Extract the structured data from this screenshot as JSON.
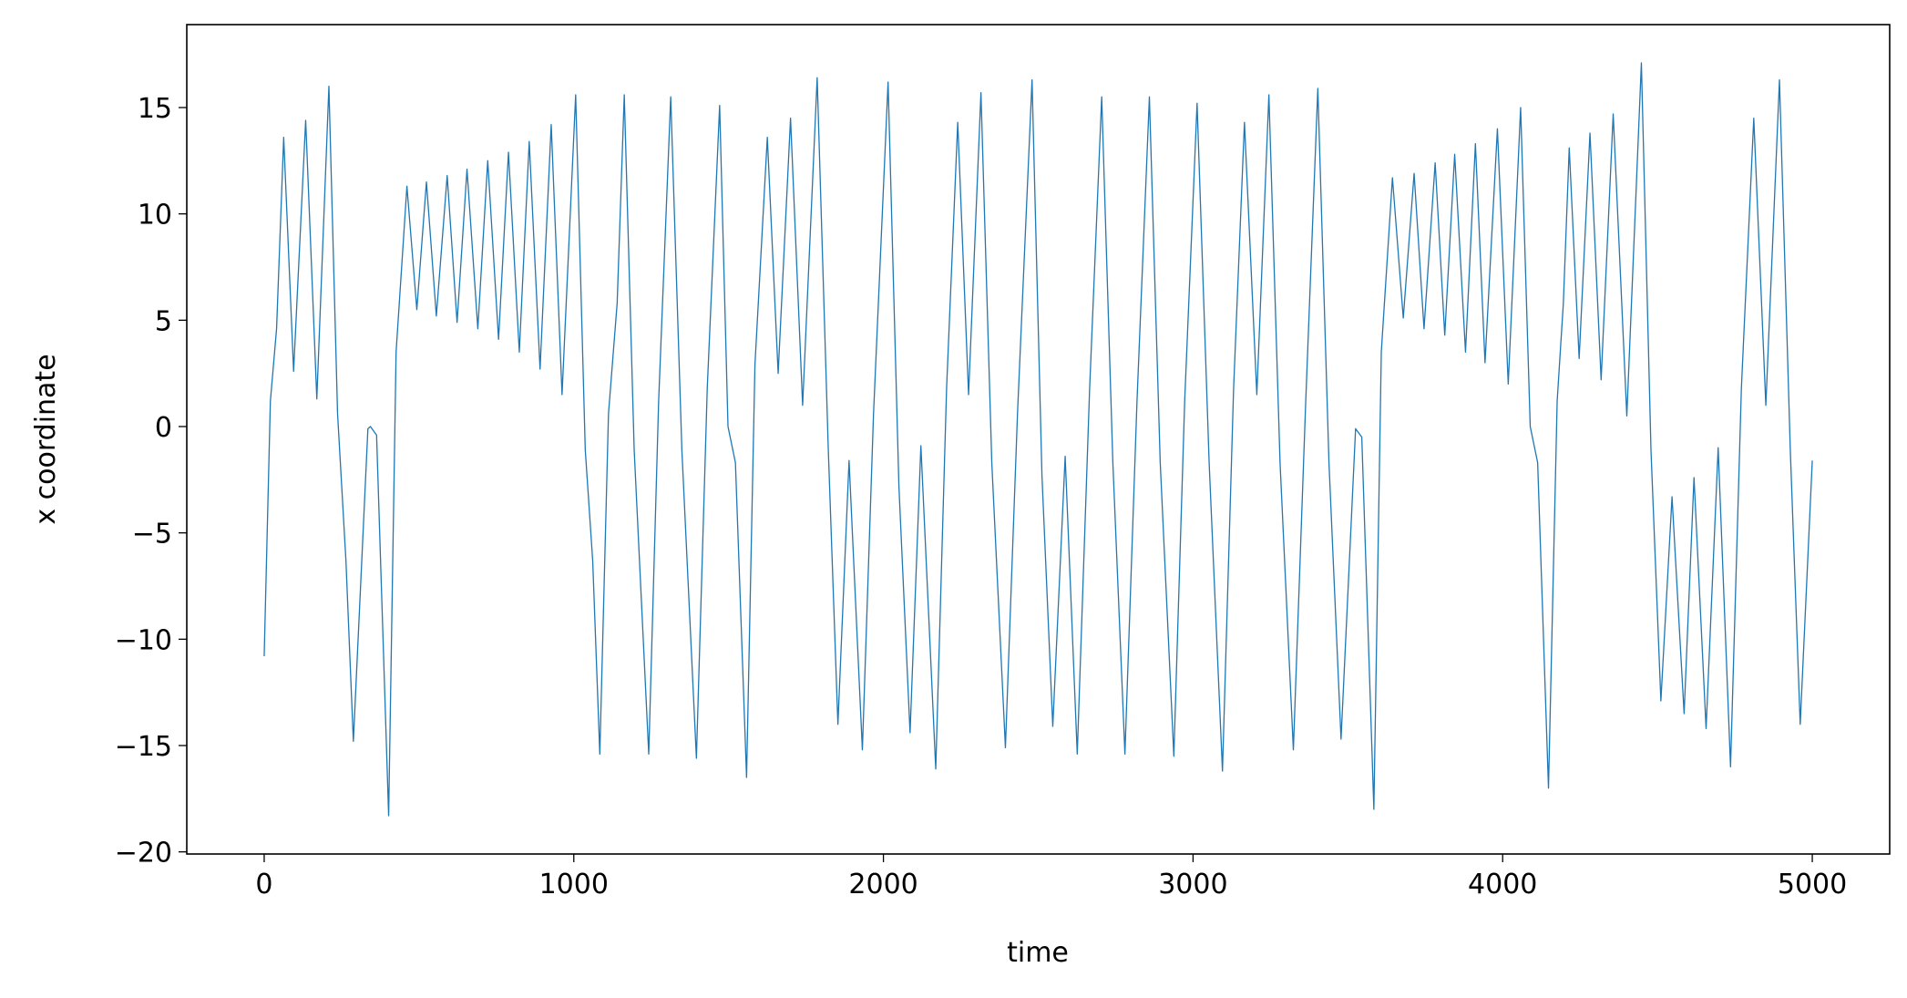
{
  "chart_data": {
    "type": "line",
    "xlabel": "time",
    "ylabel": "x coordinate",
    "color": "#1f77b4",
    "x": [
      0,
      20,
      40,
      63,
      95,
      134,
      170,
      209,
      237,
      264,
      288,
      335,
      343,
      363,
      402,
      426,
      461,
      493,
      524,
      556,
      591,
      623,
      655,
      690,
      722,
      757,
      789,
      824,
      856,
      891,
      927,
      962,
      1006,
      1037,
      1061,
      1084,
      1112,
      1140,
      1163,
      1195,
      1242,
      1274,
      1313,
      1349,
      1396,
      1431,
      1471,
      1498,
      1522,
      1558,
      1585,
      1625,
      1660,
      1700,
      1739,
      1786,
      1822,
      1853,
      1889,
      1932,
      1968,
      2015,
      2050,
      2086,
      2121,
      2169,
      2204,
      2240,
      2275,
      2315,
      2350,
      2394,
      2433,
      2480,
      2512,
      2547,
      2587,
      2626,
      2666,
      2705,
      2741,
      2780,
      2819,
      2859,
      2894,
      2938,
      2973,
      3013,
      3052,
      3095,
      3131,
      3166,
      3206,
      3245,
      3281,
      3324,
      3364,
      3403,
      3439,
      3478,
      3525,
      3545,
      3584,
      3608,
      3644,
      3679,
      3714,
      3746,
      3782,
      3813,
      3845,
      3880,
      3912,
      3943,
      3983,
      4018,
      4058,
      4089,
      4113,
      4148,
      4176,
      4196,
      4215,
      4247,
      4282,
      4318,
      4357,
      4401,
      4448,
      4479,
      4511,
      4547,
      4586,
      4618,
      4657,
      4696,
      4736,
      4771,
      4811,
      4850,
      4894,
      4929,
      4961,
      5000
    ],
    "values": [
      -10.8,
      1.2,
      4.6,
      13.6,
      2.6,
      14.4,
      1.3,
      16.0,
      0.6,
      -6.3,
      -14.8,
      -0.1,
      0.0,
      -0.4,
      -18.3,
      3.5,
      11.3,
      5.5,
      11.5,
      5.2,
      11.8,
      4.9,
      12.1,
      4.6,
      12.5,
      4.1,
      12.9,
      3.5,
      13.4,
      2.7,
      14.2,
      1.5,
      15.6,
      -1.1,
      -6.3,
      -15.4,
      0.6,
      5.8,
      15.6,
      -1.1,
      -15.4,
      1.2,
      15.5,
      -1.1,
      -15.6,
      1.8,
      15.1,
      0.0,
      -1.7,
      -16.5,
      2.9,
      13.6,
      2.5,
      14.5,
      1.0,
      16.4,
      -1.1,
      -14.0,
      -1.6,
      -15.2,
      0.6,
      16.2,
      -2.8,
      -14.4,
      -0.9,
      -16.1,
      1.8,
      14.3,
      1.5,
      15.7,
      -1.7,
      -15.1,
      0.6,
      16.3,
      -2.3,
      -14.1,
      -1.4,
      -15.4,
      1.8,
      15.5,
      -1.7,
      -15.4,
      1.2,
      15.5,
      -1.7,
      -15.5,
      1.2,
      15.2,
      -1.7,
      -16.2,
      1.8,
      14.3,
      1.5,
      15.6,
      -1.7,
      -15.2,
      1.2,
      15.9,
      -1.7,
      -14.7,
      -0.1,
      -0.5,
      -18.0,
      3.5,
      11.7,
      5.1,
      11.9,
      4.6,
      12.4,
      4.3,
      12.8,
      3.5,
      13.3,
      3.0,
      14.0,
      2.0,
      15.0,
      0.0,
      -1.7,
      -17.0,
      1.2,
      5.8,
      13.1,
      3.2,
      13.8,
      2.2,
      14.7,
      0.5,
      17.1,
      -1.1,
      -12.9,
      -3.3,
      -13.5,
      -2.4,
      -14.2,
      -1.0,
      -16.0,
      1.8,
      14.5,
      1.0,
      16.3,
      -1.1,
      -14.0,
      -1.6
    ],
    "xlim": [
      -250,
      5250
    ],
    "ylim": [
      -20.1,
      18.9
    ],
    "xticks": [
      0,
      1000,
      2000,
      3000,
      4000,
      5000
    ],
    "yticks": [
      {
        "value": -20,
        "label": "−20"
      },
      {
        "value": -15,
        "label": "−15"
      },
      {
        "value": -10,
        "label": "−10"
      },
      {
        "value": -5,
        "label": "−5"
      },
      0,
      5,
      10,
      15
    ],
    "grid": false
  }
}
